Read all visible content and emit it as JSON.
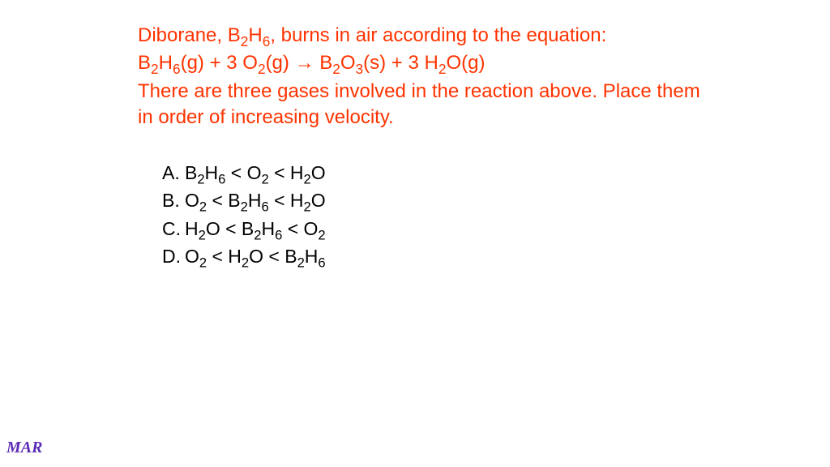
{
  "colors": {
    "question_text": "#ff3300",
    "option_text": "#000000",
    "footer_text": "#5b2bb5",
    "background": "#ffffff"
  },
  "typography": {
    "body_font": "Arial",
    "body_fontsize_pt": 18,
    "footer_font": "Times New Roman",
    "footer_fontsize_pt": 15,
    "footer_style": "bold italic"
  },
  "question": {
    "intro_pre": "Diborane, B",
    "intro_sub1": "2",
    "intro_mid1": "H",
    "intro_sub2": "6",
    "intro_post": ", burns in air according to the equation:",
    "eq_b": "B",
    "eq_s1": "2",
    "eq_h": "H",
    "eq_s2": "6",
    "eq_g1": "(g) + 3 O",
    "eq_s3": "2",
    "eq_g2": "(g) → B",
    "eq_s4": "2",
    "eq_o": "O",
    "eq_s5": "3",
    "eq_sol": "(s) + 3 H",
    "eq_s6": "2",
    "eq_end": "O(g)",
    "prompt": "There are three gases involved in the reaction above.  Place them in order of increasing velocity."
  },
  "options": [
    {
      "letter": "A.",
      "p1": "B",
      "s1": "2",
      "p2": "H",
      "s2": "6",
      "p3": " < O",
      "s3": "2",
      "p4": " < H",
      "s4": "2",
      "p5": "O"
    },
    {
      "letter": "B.",
      "p1": "O",
      "s1": "2",
      "p2": " < B",
      "s2": "2",
      "p3": "H",
      "s3": "6",
      "p4": " < H",
      "s4": "2",
      "p5": "O"
    },
    {
      "letter": "C.",
      "p1": "H",
      "s1": "2",
      "p2": "O < B",
      "s2": "2",
      "p3": "H",
      "s3": "6",
      "p4": " < O",
      "s4": "2",
      "p5": ""
    },
    {
      "letter": "D.",
      "p1": "O",
      "s1": "2",
      "p2": " < H",
      "s2": "2",
      "p3": "O < B",
      "s3": "2",
      "p4": "H",
      "s4": "6",
      "p5": ""
    }
  ],
  "footer": "MAR"
}
